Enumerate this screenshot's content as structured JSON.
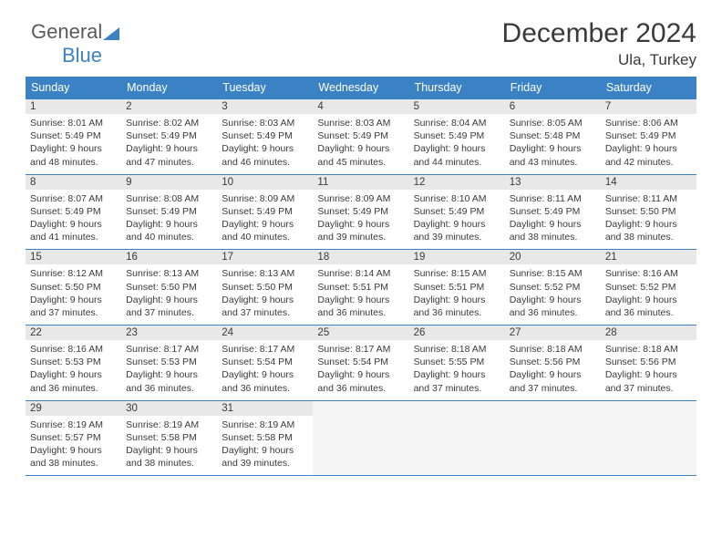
{
  "logo": {
    "text1": "General",
    "text2": "Blue"
  },
  "header": {
    "title": "December 2024",
    "location": "Ula, Turkey"
  },
  "colors": {
    "header_bg": "#3b82c4",
    "header_text": "#ffffff",
    "daynum_bg": "#e8e8e8",
    "border": "#3b82c4",
    "text": "#3a3a3a"
  },
  "weekdays": [
    "Sunday",
    "Monday",
    "Tuesday",
    "Wednesday",
    "Thursday",
    "Friday",
    "Saturday"
  ],
  "days": [
    {
      "n": "1",
      "sr": "8:01 AM",
      "ss": "5:49 PM",
      "dl": "9 hours and 48 minutes."
    },
    {
      "n": "2",
      "sr": "8:02 AM",
      "ss": "5:49 PM",
      "dl": "9 hours and 47 minutes."
    },
    {
      "n": "3",
      "sr": "8:03 AM",
      "ss": "5:49 PM",
      "dl": "9 hours and 46 minutes."
    },
    {
      "n": "4",
      "sr": "8:03 AM",
      "ss": "5:49 PM",
      "dl": "9 hours and 45 minutes."
    },
    {
      "n": "5",
      "sr": "8:04 AM",
      "ss": "5:49 PM",
      "dl": "9 hours and 44 minutes."
    },
    {
      "n": "6",
      "sr": "8:05 AM",
      "ss": "5:48 PM",
      "dl": "9 hours and 43 minutes."
    },
    {
      "n": "7",
      "sr": "8:06 AM",
      "ss": "5:49 PM",
      "dl": "9 hours and 42 minutes."
    },
    {
      "n": "8",
      "sr": "8:07 AM",
      "ss": "5:49 PM",
      "dl": "9 hours and 41 minutes."
    },
    {
      "n": "9",
      "sr": "8:08 AM",
      "ss": "5:49 PM",
      "dl": "9 hours and 40 minutes."
    },
    {
      "n": "10",
      "sr": "8:09 AM",
      "ss": "5:49 PM",
      "dl": "9 hours and 40 minutes."
    },
    {
      "n": "11",
      "sr": "8:09 AM",
      "ss": "5:49 PM",
      "dl": "9 hours and 39 minutes."
    },
    {
      "n": "12",
      "sr": "8:10 AM",
      "ss": "5:49 PM",
      "dl": "9 hours and 39 minutes."
    },
    {
      "n": "13",
      "sr": "8:11 AM",
      "ss": "5:49 PM",
      "dl": "9 hours and 38 minutes."
    },
    {
      "n": "14",
      "sr": "8:11 AM",
      "ss": "5:50 PM",
      "dl": "9 hours and 38 minutes."
    },
    {
      "n": "15",
      "sr": "8:12 AM",
      "ss": "5:50 PM",
      "dl": "9 hours and 37 minutes."
    },
    {
      "n": "16",
      "sr": "8:13 AM",
      "ss": "5:50 PM",
      "dl": "9 hours and 37 minutes."
    },
    {
      "n": "17",
      "sr": "8:13 AM",
      "ss": "5:50 PM",
      "dl": "9 hours and 37 minutes."
    },
    {
      "n": "18",
      "sr": "8:14 AM",
      "ss": "5:51 PM",
      "dl": "9 hours and 36 minutes."
    },
    {
      "n": "19",
      "sr": "8:15 AM",
      "ss": "5:51 PM",
      "dl": "9 hours and 36 minutes."
    },
    {
      "n": "20",
      "sr": "8:15 AM",
      "ss": "5:52 PM",
      "dl": "9 hours and 36 minutes."
    },
    {
      "n": "21",
      "sr": "8:16 AM",
      "ss": "5:52 PM",
      "dl": "9 hours and 36 minutes."
    },
    {
      "n": "22",
      "sr": "8:16 AM",
      "ss": "5:53 PM",
      "dl": "9 hours and 36 minutes."
    },
    {
      "n": "23",
      "sr": "8:17 AM",
      "ss": "5:53 PM",
      "dl": "9 hours and 36 minutes."
    },
    {
      "n": "24",
      "sr": "8:17 AM",
      "ss": "5:54 PM",
      "dl": "9 hours and 36 minutes."
    },
    {
      "n": "25",
      "sr": "8:17 AM",
      "ss": "5:54 PM",
      "dl": "9 hours and 36 minutes."
    },
    {
      "n": "26",
      "sr": "8:18 AM",
      "ss": "5:55 PM",
      "dl": "9 hours and 37 minutes."
    },
    {
      "n": "27",
      "sr": "8:18 AM",
      "ss": "5:56 PM",
      "dl": "9 hours and 37 minutes."
    },
    {
      "n": "28",
      "sr": "8:18 AM",
      "ss": "5:56 PM",
      "dl": "9 hours and 37 minutes."
    },
    {
      "n": "29",
      "sr": "8:19 AM",
      "ss": "5:57 PM",
      "dl": "9 hours and 38 minutes."
    },
    {
      "n": "30",
      "sr": "8:19 AM",
      "ss": "5:58 PM",
      "dl": "9 hours and 38 minutes."
    },
    {
      "n": "31",
      "sr": "8:19 AM",
      "ss": "5:58 PM",
      "dl": "9 hours and 39 minutes."
    }
  ],
  "labels": {
    "sunrise": "Sunrise:",
    "sunset": "Sunset:",
    "daylight": "Daylight:"
  }
}
